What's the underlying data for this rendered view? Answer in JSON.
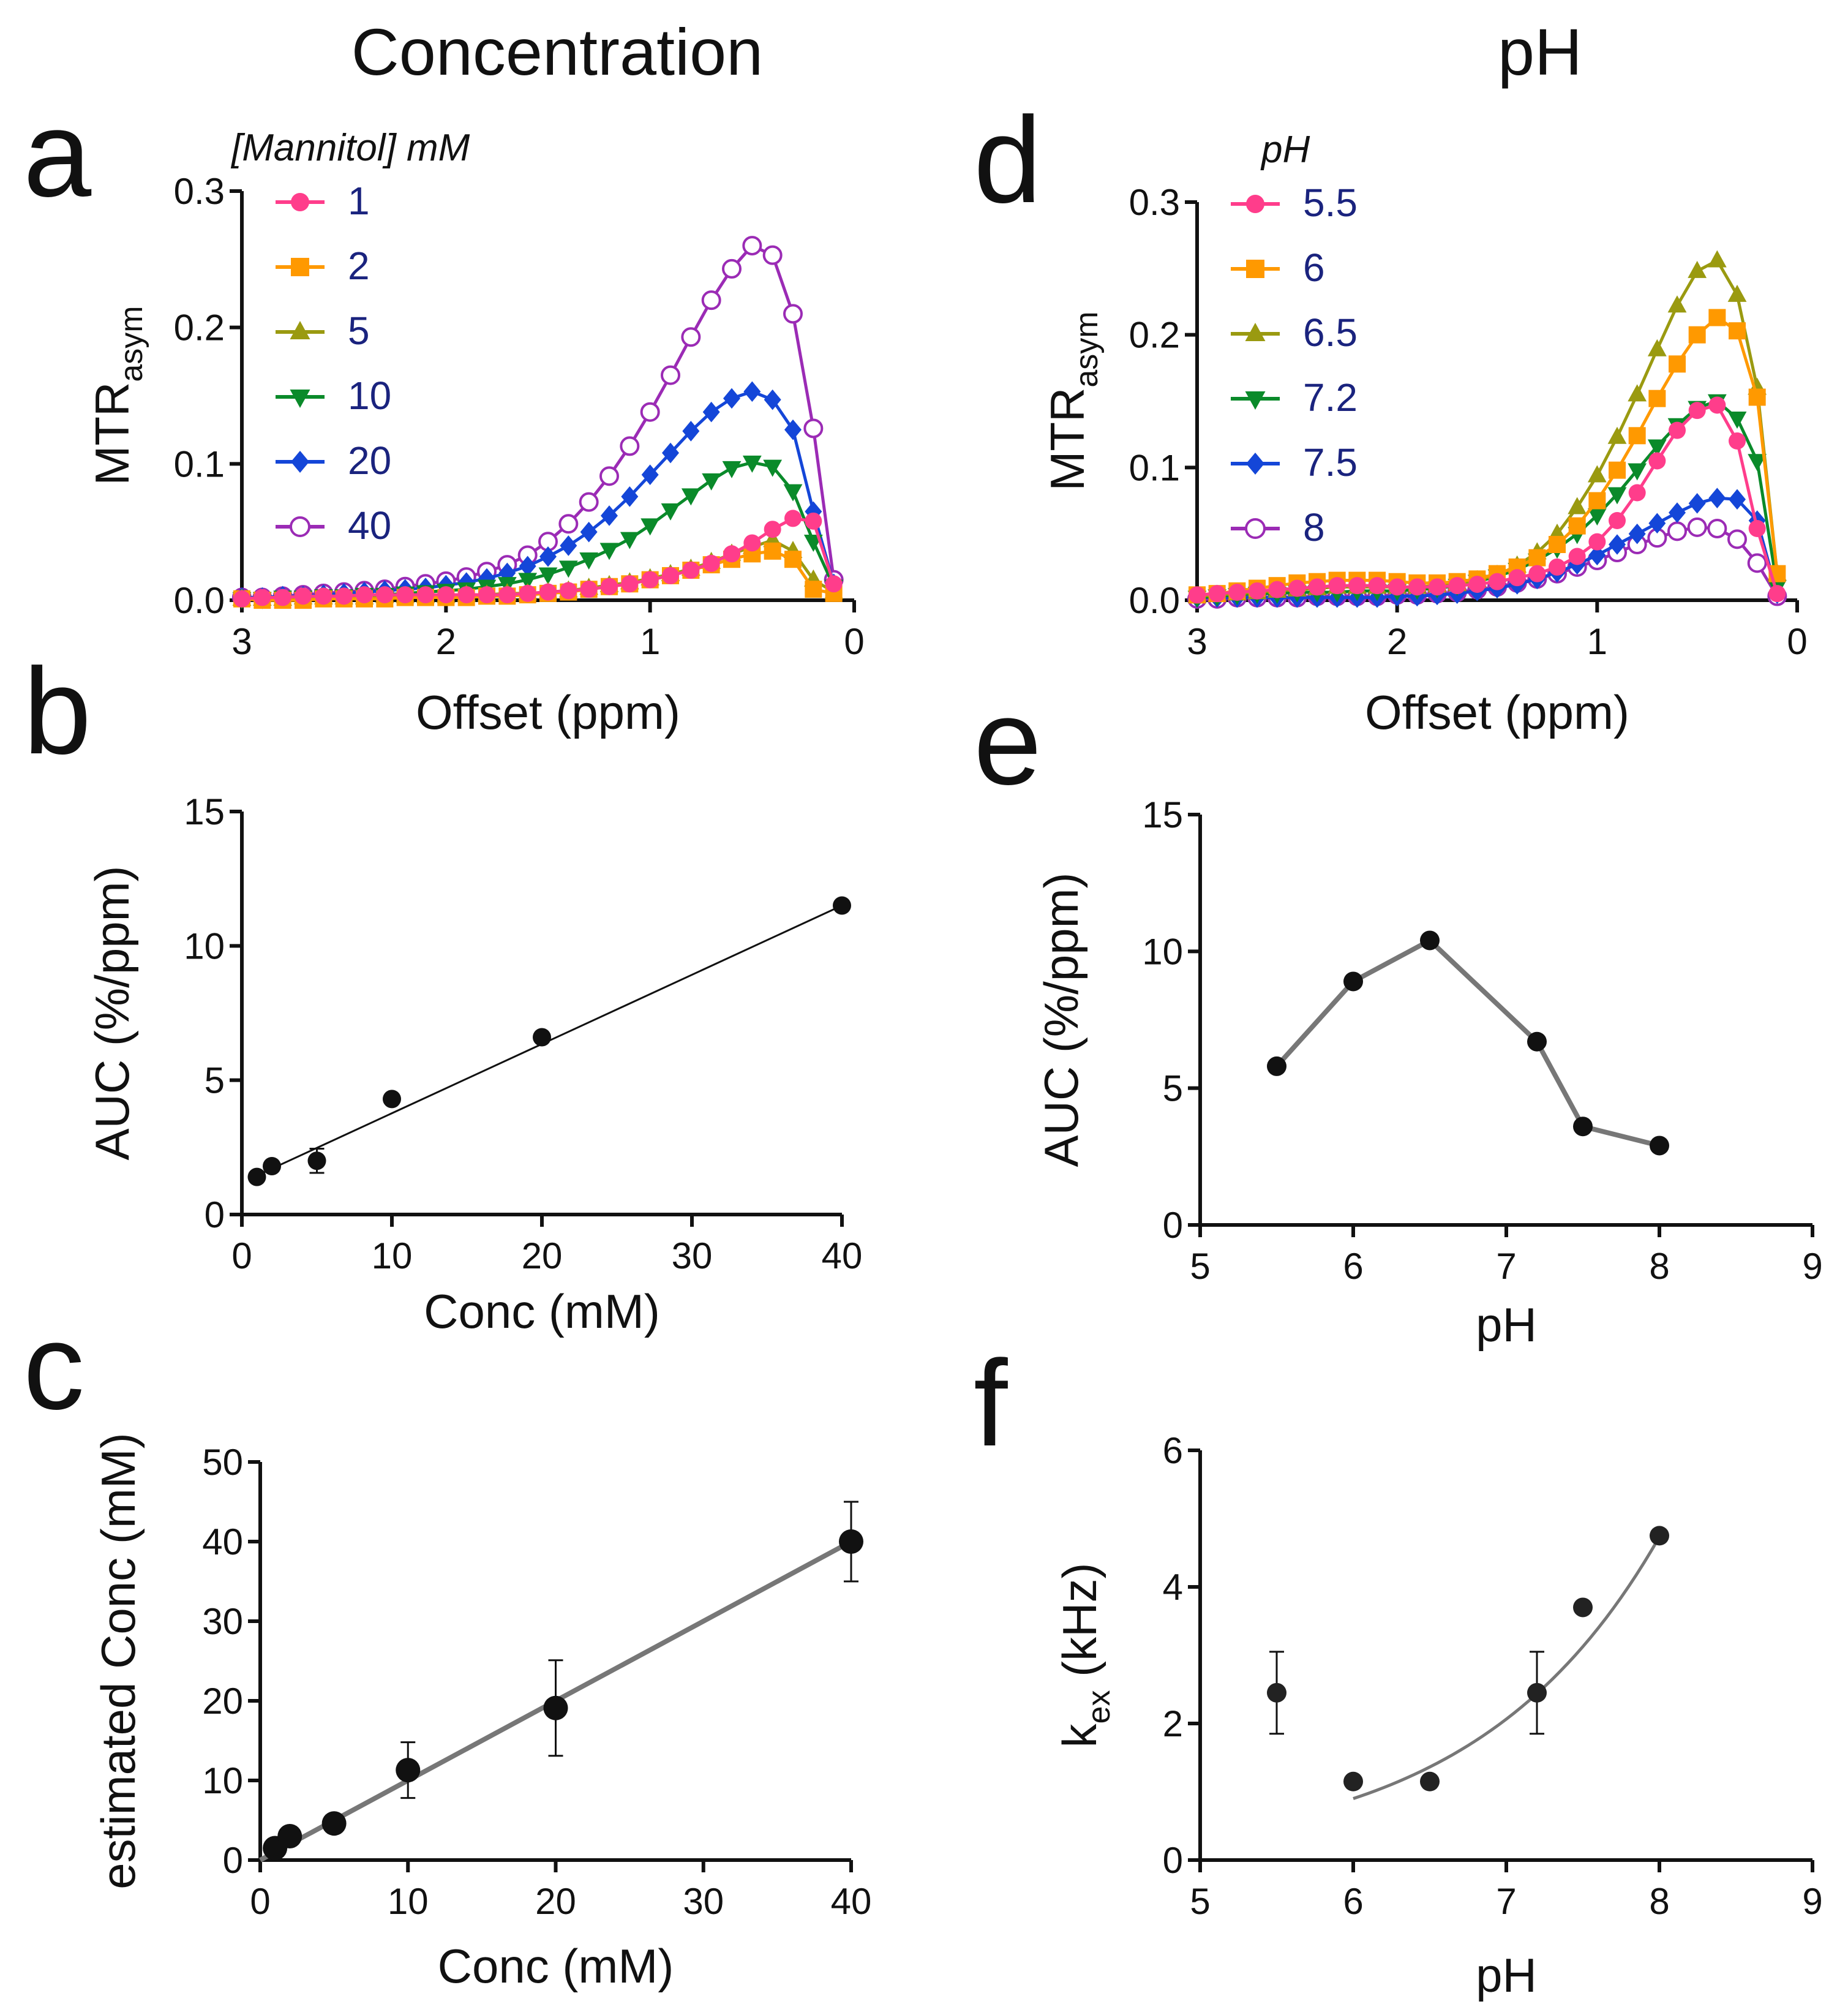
{
  "columns": {
    "left": "Concentration",
    "right": "pH"
  },
  "panels": {
    "a": "a",
    "b": "b",
    "c": "c",
    "d": "d",
    "e": "e",
    "f": "f"
  },
  "colors": {
    "s1": "#ff3d8b",
    "s2": "#ff9900",
    "s3": "#9a9a10",
    "s4": "#0a8a2a",
    "s5": "#1446d8",
    "s6": "#9b2bb5",
    "black": "#111111",
    "gray": "#777777"
  },
  "chart_data": [
    {
      "id": "a",
      "type": "line",
      "xlabel": "Offset (ppm)",
      "ylabel": "MTR",
      "ylabel_sub": "asym",
      "xlim": [
        3,
        0
      ],
      "ylim": [
        0,
        0.3
      ],
      "xticks": [
        3,
        2,
        1,
        0
      ],
      "yticks": [
        0.0,
        0.1,
        0.2,
        0.3
      ],
      "xtick_labels": [
        "3",
        "2",
        "1",
        "0"
      ],
      "ytick_labels": [
        "0.0",
        "0.1",
        "0.2",
        "0.3"
      ],
      "legend_title": "[Mannitol] mM",
      "legend_position": "top-left",
      "x": [
        3.0,
        2.9,
        2.8,
        2.7,
        2.6,
        2.5,
        2.4,
        2.3,
        2.2,
        2.1,
        2.0,
        1.9,
        1.8,
        1.7,
        1.6,
        1.5,
        1.4,
        1.3,
        1.2,
        1.1,
        1.0,
        0.9,
        0.8,
        0.7,
        0.6,
        0.5,
        0.4,
        0.3,
        0.2,
        0.1
      ],
      "series": [
        {
          "name": "1",
          "marker": "circle",
          "color": "#ff3d8b",
          "values": [
            0.001,
            0.002,
            0.002,
            0.003,
            0.003,
            0.003,
            0.004,
            0.004,
            0.004,
            0.004,
            0.004,
            0.004,
            0.004,
            0.004,
            0.005,
            0.006,
            0.007,
            0.008,
            0.01,
            0.012,
            0.015,
            0.018,
            0.022,
            0.027,
            0.034,
            0.042,
            0.052,
            0.06,
            0.058,
            0.012
          ]
        },
        {
          "name": "2",
          "marker": "square",
          "color": "#ff9900",
          "values": [
            0.001,
            0.0,
            0.0,
            0.0,
            0.001,
            0.001,
            0.001,
            0.001,
            0.002,
            0.002,
            0.002,
            0.002,
            0.003,
            0.003,
            0.004,
            0.005,
            0.006,
            0.008,
            0.01,
            0.012,
            0.015,
            0.018,
            0.022,
            0.026,
            0.03,
            0.034,
            0.036,
            0.03,
            0.008,
            0.005
          ]
        },
        {
          "name": "5",
          "marker": "triangle-up",
          "color": "#9a9a10",
          "values": [
            0.001,
            0.001,
            0.001,
            0.002,
            0.002,
            0.002,
            0.002,
            0.003,
            0.003,
            0.003,
            0.003,
            0.004,
            0.004,
            0.005,
            0.005,
            0.006,
            0.007,
            0.009,
            0.011,
            0.013,
            0.016,
            0.019,
            0.023,
            0.028,
            0.034,
            0.039,
            0.044,
            0.036,
            0.015,
            0.006
          ]
        },
        {
          "name": "10",
          "marker": "triangle-down",
          "color": "#0a8a2a",
          "values": [
            0.001,
            0.001,
            0.002,
            0.002,
            0.003,
            0.003,
            0.004,
            0.004,
            0.005,
            0.006,
            0.007,
            0.008,
            0.01,
            0.012,
            0.015,
            0.019,
            0.024,
            0.03,
            0.037,
            0.045,
            0.055,
            0.066,
            0.077,
            0.088,
            0.097,
            0.101,
            0.098,
            0.08,
            0.043,
            0.01
          ]
        },
        {
          "name": "20",
          "marker": "diamond",
          "color": "#1446d8",
          "values": [
            0.002,
            0.002,
            0.003,
            0.003,
            0.004,
            0.005,
            0.006,
            0.007,
            0.008,
            0.009,
            0.011,
            0.013,
            0.016,
            0.02,
            0.025,
            0.032,
            0.04,
            0.05,
            0.062,
            0.076,
            0.092,
            0.108,
            0.124,
            0.138,
            0.148,
            0.153,
            0.147,
            0.125,
            0.065,
            0.012
          ]
        },
        {
          "name": "40",
          "marker": "circle-open",
          "color": "#9b2bb5",
          "values": [
            0.002,
            0.002,
            0.003,
            0.004,
            0.005,
            0.006,
            0.007,
            0.008,
            0.01,
            0.012,
            0.014,
            0.017,
            0.021,
            0.026,
            0.033,
            0.043,
            0.056,
            0.072,
            0.091,
            0.113,
            0.138,
            0.165,
            0.193,
            0.22,
            0.243,
            0.26,
            0.253,
            0.21,
            0.126,
            0.015
          ]
        }
      ]
    },
    {
      "id": "b",
      "type": "scatter",
      "xlabel": "Conc (mM)",
      "ylabel": "AUC (%/ppm)",
      "xlim": [
        0,
        40
      ],
      "ylim": [
        0,
        15
      ],
      "xticks": [
        0,
        10,
        20,
        30,
        40
      ],
      "yticks": [
        0,
        5,
        10,
        15
      ],
      "xtick_labels": [
        "0",
        "10",
        "20",
        "30",
        "40"
      ],
      "ytick_labels": [
        "0",
        "5",
        "10",
        "15"
      ],
      "x": [
        1,
        2,
        5,
        10,
        20,
        40
      ],
      "values": [
        1.4,
        1.8,
        2.0,
        4.3,
        6.6,
        11.5
      ],
      "errors": [
        0,
        0,
        0.45,
        0,
        0,
        0
      ],
      "fit": {
        "x": [
          1,
          40
        ],
        "y": [
          1.45,
          11.5
        ]
      }
    },
    {
      "id": "c",
      "type": "scatter",
      "xlabel": "Conc (mM)",
      "ylabel": "estimated Conc (mM)",
      "xlim": [
        0,
        40
      ],
      "ylim": [
        0,
        50
      ],
      "xticks": [
        0,
        10,
        20,
        30,
        40
      ],
      "yticks": [
        0,
        10,
        20,
        30,
        40,
        50
      ],
      "xtick_labels": [
        "0",
        "10",
        "20",
        "30",
        "40"
      ],
      "ytick_labels": [
        "0",
        "10",
        "20",
        "30",
        "40",
        "50"
      ],
      "x": [
        1,
        2,
        5,
        10,
        20,
        40
      ],
      "values": [
        1.5,
        3.0,
        4.6,
        11.3,
        19.1,
        40.0
      ],
      "errors": [
        0,
        0,
        0,
        3.5,
        6.0,
        5.0
      ],
      "fit": {
        "x": [
          0,
          40
        ],
        "y": [
          0,
          40
        ]
      }
    },
    {
      "id": "d",
      "type": "line",
      "xlabel": "Offset (ppm)",
      "ylabel": "MTR",
      "ylabel_sub": "asym",
      "xlim": [
        3,
        0
      ],
      "ylim": [
        0,
        0.3
      ],
      "xticks": [
        3,
        2,
        1,
        0
      ],
      "yticks": [
        0.0,
        0.1,
        0.2,
        0.3
      ],
      "xtick_labels": [
        "3",
        "2",
        "1",
        "0"
      ],
      "ytick_labels": [
        "0.0",
        "0.1",
        "0.2",
        "0.3"
      ],
      "legend_title": "pH",
      "legend_position": "top-left",
      "x": [
        3.0,
        2.9,
        2.8,
        2.7,
        2.6,
        2.5,
        2.4,
        2.3,
        2.2,
        2.1,
        2.0,
        1.9,
        1.8,
        1.7,
        1.6,
        1.5,
        1.4,
        1.3,
        1.2,
        1.1,
        1.0,
        0.9,
        0.8,
        0.7,
        0.6,
        0.5,
        0.4,
        0.3,
        0.2,
        0.1
      ],
      "series": [
        {
          "name": "5.5",
          "marker": "circle",
          "color": "#ff3d8b",
          "values": [
            0.004,
            0.005,
            0.006,
            0.007,
            0.008,
            0.009,
            0.01,
            0.011,
            0.011,
            0.011,
            0.01,
            0.01,
            0.01,
            0.011,
            0.012,
            0.014,
            0.017,
            0.02,
            0.025,
            0.033,
            0.044,
            0.06,
            0.081,
            0.105,
            0.128,
            0.143,
            0.147,
            0.12,
            0.054,
            0.005
          ]
        },
        {
          "name": "6",
          "marker": "square",
          "color": "#ff9900",
          "values": [
            0.004,
            0.005,
            0.007,
            0.009,
            0.011,
            0.013,
            0.014,
            0.015,
            0.015,
            0.015,
            0.014,
            0.013,
            0.013,
            0.014,
            0.016,
            0.02,
            0.025,
            0.032,
            0.042,
            0.056,
            0.075,
            0.098,
            0.124,
            0.152,
            0.178,
            0.2,
            0.213,
            0.203,
            0.153,
            0.02
          ]
        },
        {
          "name": "6.5",
          "marker": "triangle-up",
          "color": "#9a9a10",
          "values": [
            0.003,
            0.004,
            0.005,
            0.006,
            0.007,
            0.008,
            0.009,
            0.01,
            0.01,
            0.01,
            0.01,
            0.01,
            0.011,
            0.012,
            0.015,
            0.019,
            0.026,
            0.036,
            0.05,
            0.07,
            0.094,
            0.123,
            0.155,
            0.189,
            0.222,
            0.248,
            0.256,
            0.23,
            0.16,
            0.02
          ]
        },
        {
          "name": "7.2",
          "marker": "triangle-down",
          "color": "#0a8a2a",
          "values": [
            0.002,
            0.003,
            0.004,
            0.005,
            0.005,
            0.006,
            0.006,
            0.006,
            0.007,
            0.007,
            0.007,
            0.008,
            0.009,
            0.011,
            0.014,
            0.018,
            0.023,
            0.03,
            0.039,
            0.05,
            0.064,
            0.08,
            0.098,
            0.116,
            0.132,
            0.145,
            0.15,
            0.137,
            0.105,
            0.01
          ]
        },
        {
          "name": "7.5",
          "marker": "diamond",
          "color": "#1446d8",
          "values": [
            0.002,
            0.002,
            0.002,
            0.002,
            0.002,
            0.002,
            0.002,
            0.002,
            0.002,
            0.002,
            0.003,
            0.003,
            0.004,
            0.005,
            0.007,
            0.009,
            0.012,
            0.016,
            0.021,
            0.027,
            0.034,
            0.042,
            0.05,
            0.058,
            0.066,
            0.073,
            0.077,
            0.076,
            0.06,
            0.005
          ]
        },
        {
          "name": "8",
          "marker": "circle-open",
          "color": "#9b2bb5",
          "values": [
            0.001,
            0.001,
            0.002,
            0.002,
            0.002,
            0.002,
            0.003,
            0.003,
            0.003,
            0.003,
            0.004,
            0.004,
            0.005,
            0.006,
            0.008,
            0.01,
            0.013,
            0.016,
            0.02,
            0.025,
            0.03,
            0.036,
            0.042,
            0.047,
            0.052,
            0.055,
            0.054,
            0.046,
            0.028,
            0.003
          ]
        }
      ]
    },
    {
      "id": "e",
      "type": "line",
      "xlabel": "pH",
      "ylabel": "AUC (%/ppm)",
      "xlim": [
        5,
        9
      ],
      "ylim": [
        0,
        15
      ],
      "xticks": [
        5,
        6,
        7,
        8,
        9
      ],
      "yticks": [
        0,
        5,
        10,
        15
      ],
      "xtick_labels": [
        "5",
        "6",
        "7",
        "8",
        "9"
      ],
      "ytick_labels": [
        "0",
        "5",
        "10",
        "15"
      ],
      "x": [
        5.5,
        6.0,
        6.5,
        7.2,
        7.5,
        8.0
      ],
      "values": [
        5.8,
        8.9,
        10.4,
        6.7,
        3.6,
        2.9
      ]
    },
    {
      "id": "f",
      "type": "scatter",
      "xlabel": "pH",
      "ylabel": "k",
      "ylabel_sub": "ex",
      "ylabel_suffix": " (kHz)",
      "xlim": [
        5,
        9
      ],
      "ylim": [
        0,
        6
      ],
      "xticks": [
        5,
        6,
        7,
        8,
        9
      ],
      "yticks": [
        0,
        2,
        4,
        6
      ],
      "xtick_labels": [
        "5",
        "6",
        "7",
        "8",
        "9"
      ],
      "ytick_labels": [
        "0",
        "2",
        "4",
        "6"
      ],
      "x": [
        5.5,
        6.0,
        6.5,
        7.2,
        7.5,
        8.0
      ],
      "values": [
        2.45,
        1.15,
        1.15,
        2.45,
        3.7,
        4.75
      ],
      "errors": [
        0.6,
        0,
        0,
        0.6,
        0,
        0
      ],
      "fit": {
        "type": "exponential",
        "x_range": [
          6.0,
          8.0
        ],
        "a": 0.9,
        "b": 0.83,
        "x0": 6.0
      }
    }
  ]
}
